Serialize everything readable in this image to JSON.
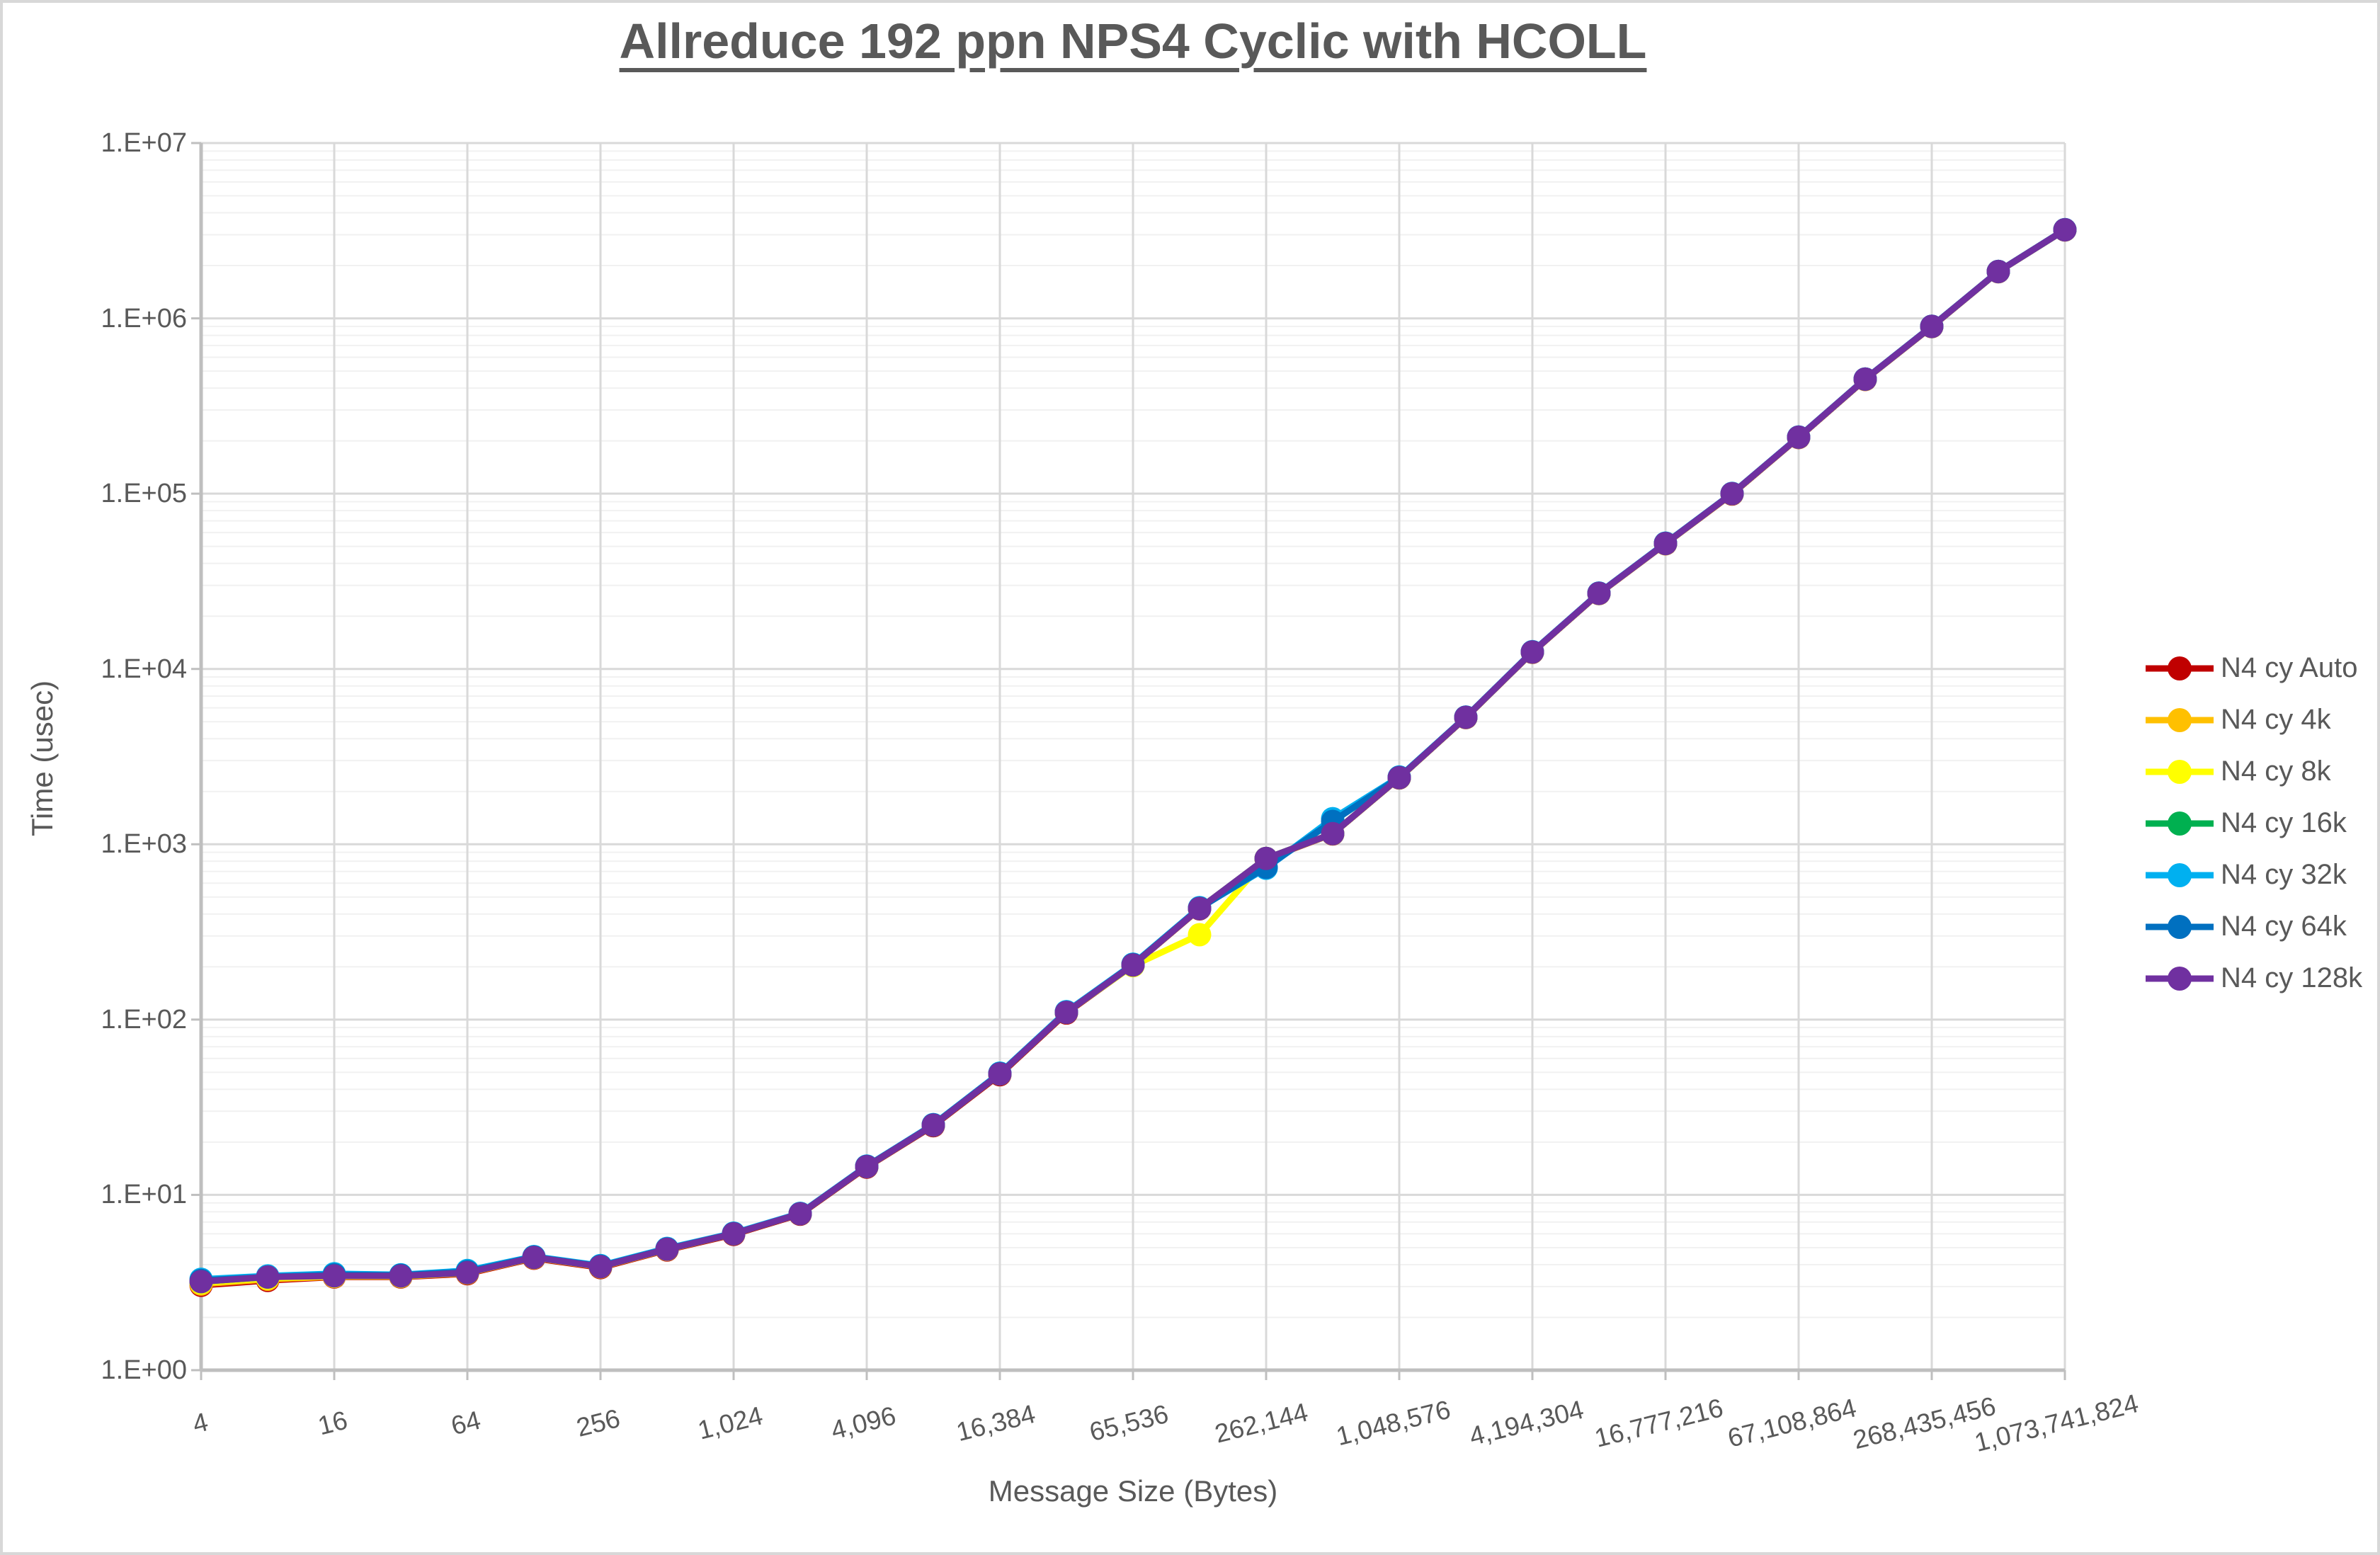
{
  "chart": {
    "title": "Allreduce 192 ppn NPS4 Cyclic with HCOLL",
    "x_axis_title": "Message Size (Bytes)",
    "y_axis_title": "Time (usec)",
    "y_tick_labels": [
      "1.E+00",
      "1.E+01",
      "1.E+02",
      "1.E+03",
      "1.E+04",
      "1.E+05",
      "1.E+06",
      "1.E+07"
    ],
    "x_tick_labels": [
      "4",
      "16",
      "64",
      "256",
      "1,024",
      "4,096",
      "16,384",
      "65,536",
      "262,144",
      "1,048,576",
      "4,194,304",
      "16,777,216",
      "67,108,864",
      "268,435,456",
      "1,073,741,824"
    ],
    "text_color": "#595959",
    "major_grid_color": "#D9D9D9",
    "minor_grid_color": "#F1F1F1",
    "axis_line_color": "#BFBFBF"
  },
  "chart_data": {
    "type": "line",
    "title": "Allreduce 192 ppn NPS4 Cyclic with HCOLL",
    "xlabel": "Message Size (Bytes)",
    "ylabel": "Time (usec)",
    "x_scale": "log2",
    "y_scale": "log10",
    "ylim": [
      1,
      10000000
    ],
    "xlim": [
      4,
      1073741824
    ],
    "grid": true,
    "legend_position": "right",
    "x": [
      4,
      8,
      16,
      32,
      64,
      128,
      256,
      512,
      1024,
      2048,
      4096,
      8192,
      16384,
      32768,
      65536,
      131072,
      262144,
      524288,
      1048576,
      2097152,
      4194304,
      8388608,
      16777216,
      33554432,
      67108864,
      134217728,
      268435456,
      536870912,
      1073741824
    ],
    "series": [
      {
        "name": "N4 cy Auto",
        "color": "#C00000",
        "values": [
          3.05,
          3.25,
          3.4,
          3.4,
          3.55,
          4.35,
          3.85,
          4.85,
          5.95,
          7.75,
          14.4,
          24.8,
          48.5,
          109,
          204,
          428,
          825,
          1145,
          2390,
          5280,
          12450,
          26900,
          51800,
          99500,
          209000,
          448000,
          897000,
          1845000,
          3195000
        ]
      },
      {
        "name": "N4 cy 4k",
        "color": "#FFC000",
        "values": [
          3.1,
          3.3,
          3.42,
          3.42,
          3.58,
          4.38,
          3.88,
          4.88,
          6.0,
          7.8,
          14.5,
          25,
          49,
          110,
          205,
          430,
          828,
          1148,
          2395,
          5290,
          12480,
          26950,
          51900,
          99800,
          209500,
          449000,
          899000,
          1848000,
          3198000
        ]
      },
      {
        "name": "N4 cy 8k",
        "color": "#FFFF00",
        "values": [
          3.15,
          3.35,
          3.43,
          3.44,
          3.6,
          4.4,
          3.9,
          4.9,
          6.0,
          7.8,
          14.5,
          25,
          49,
          110,
          203,
          305,
          830,
          1150,
          2400,
          5300,
          12500,
          27000,
          52000,
          100000,
          210000,
          450000,
          900000,
          1850000,
          3200000
        ]
      },
      {
        "name": "N4 cy 16k",
        "color": "#00B050",
        "values": [
          3.2,
          3.4,
          3.5,
          3.45,
          3.6,
          4.4,
          3.9,
          4.9,
          6.0,
          7.8,
          14.5,
          25,
          49,
          110,
          205,
          430,
          830,
          1150,
          2400,
          5300,
          12500,
          27000,
          52000,
          100000,
          210000,
          450000,
          900000,
          1850000,
          3200000
        ]
      },
      {
        "name": "N4 cy 32k",
        "color": "#00B0F0",
        "values": [
          3.3,
          3.45,
          3.55,
          3.5,
          3.7,
          4.45,
          3.95,
          4.95,
          6.05,
          7.85,
          14.6,
          25.2,
          49.5,
          111,
          207,
          435,
          730,
          1400,
          2420,
          5320,
          12550,
          27100,
          52200,
          100300,
          210500,
          451000,
          902000,
          1852000,
          3205000
        ]
      },
      {
        "name": "N4 cy 64k",
        "color": "#0070C0",
        "values": [
          3.25,
          3.4,
          3.5,
          3.48,
          3.65,
          4.42,
          3.92,
          4.92,
          6.02,
          7.82,
          14.55,
          25.1,
          49.2,
          110,
          206,
          432,
          740,
          1350,
          2410,
          5310,
          12520,
          27050,
          52100,
          100100,
          210200,
          450500,
          901000,
          1851000,
          3202000
        ]
      },
      {
        "name": "N4 cy 128k",
        "color": "#7030A0",
        "values": [
          3.2,
          3.4,
          3.45,
          3.45,
          3.6,
          4.4,
          3.9,
          4.9,
          6.0,
          7.8,
          14.5,
          25,
          49,
          110,
          205,
          430,
          830,
          1150,
          2400,
          5300,
          12500,
          27000,
          52000,
          100000,
          210000,
          450000,
          900000,
          1850000,
          3200000
        ]
      }
    ]
  }
}
